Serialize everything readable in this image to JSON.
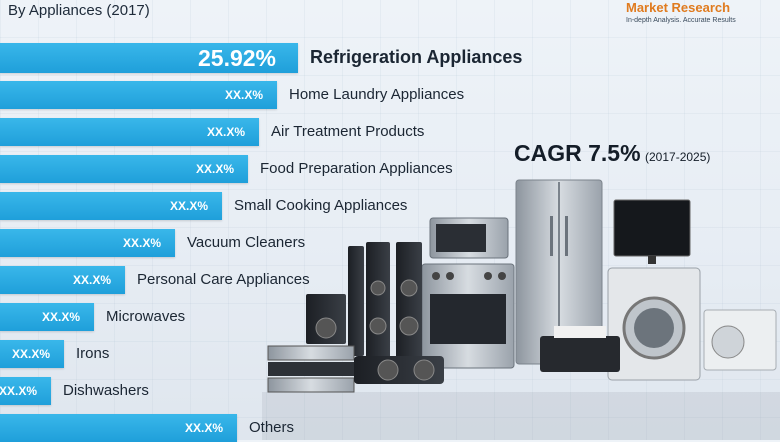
{
  "subtitle": "By Appliances (2017)",
  "logo": {
    "name": "Market Research",
    "tagline": "In-depth Analysis. Accurate Results"
  },
  "cagr": {
    "label": "CAGR 7.5%",
    "period": "(2017-2025)"
  },
  "colors": {
    "bar": "#1fa3dd",
    "accent": "#e07b1f",
    "text": "#1b2633"
  },
  "chart_data": {
    "type": "bar",
    "orientation": "horizontal",
    "categories": [
      "Refrigeration Appliances",
      "Home Laundry Appliances",
      "Air Treatment Products",
      "Food Preparation Appliances",
      "Small Cooking Appliances",
      "Vacuum Cleaners",
      "Personal Care Appliances",
      "Microwaves",
      "Irons",
      "Dishwashers",
      "Others"
    ],
    "value_labels": [
      "25.92%",
      "XX.X%",
      "XX.X%",
      "XX.X%",
      "XX.X%",
      "XX.X%",
      "XX.X%",
      "XX.X%",
      "XX.X%",
      "XX.X%",
      "XX.X%"
    ],
    "values": [
      25.92,
      24.1,
      22.5,
      21.6,
      19.3,
      15.2,
      10.9,
      8.2,
      5.6,
      4.4,
      20.6
    ],
    "title": "",
    "xlabel": "",
    "ylabel": ""
  }
}
